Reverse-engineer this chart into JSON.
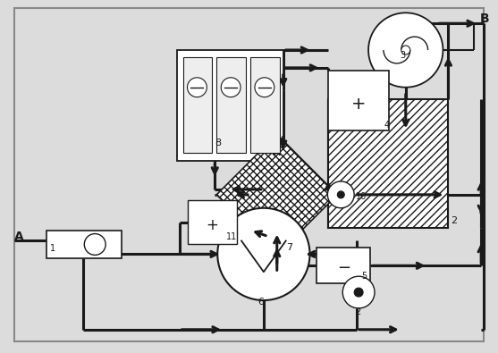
{
  "bg_color": "#dcdcdc",
  "line_color": "#1a1a1a",
  "white": "#ffffff",
  "fig_w": 5.57,
  "fig_h": 3.95,
  "dpi": 100
}
